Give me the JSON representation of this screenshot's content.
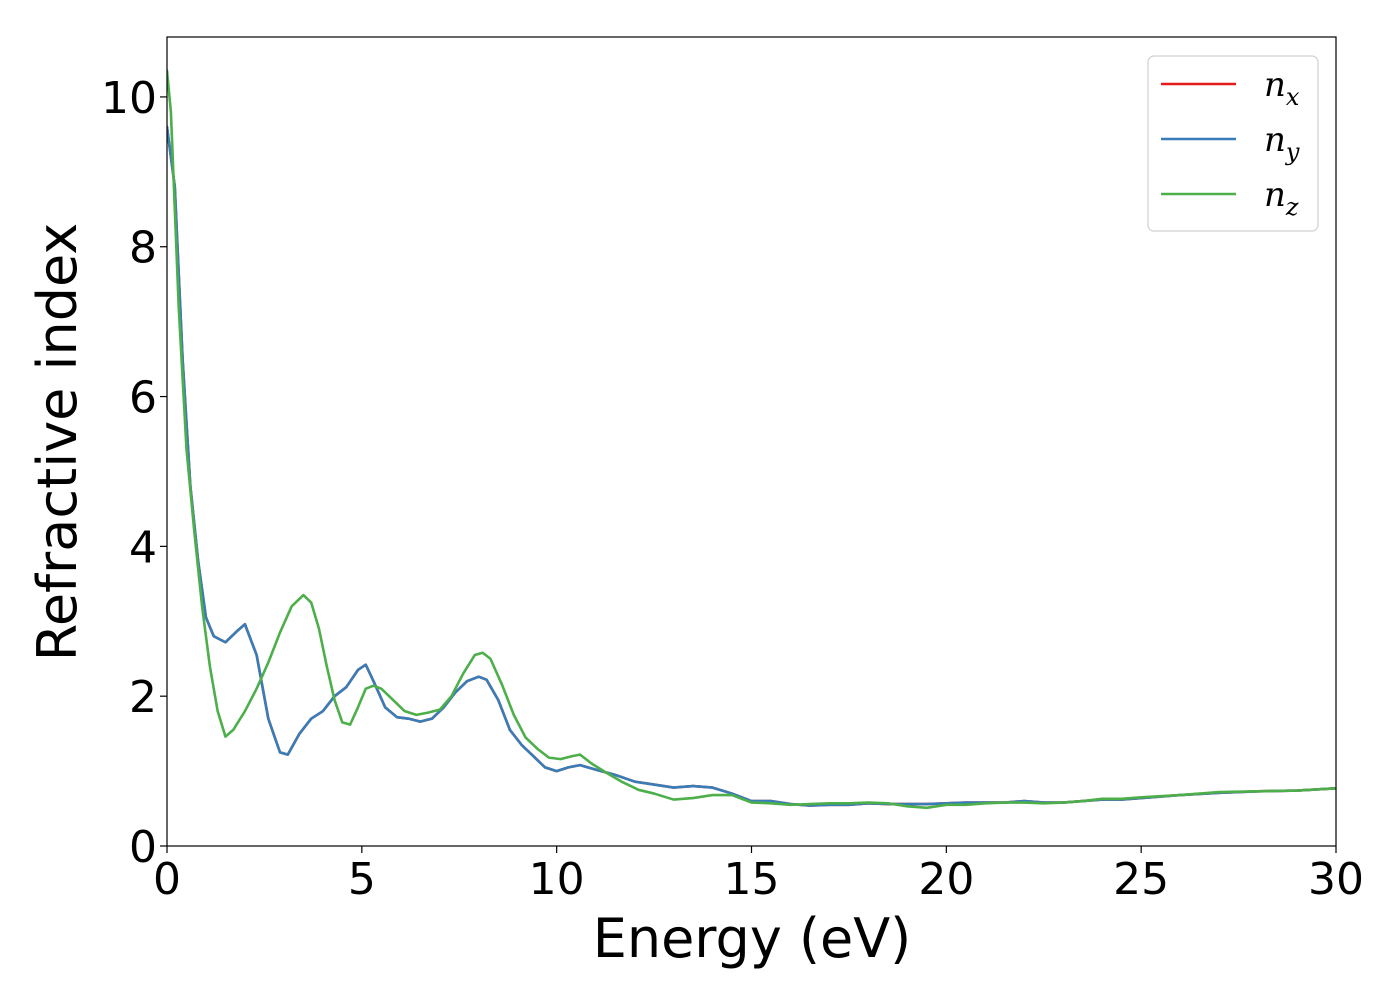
{
  "chart_data": {
    "type": "line",
    "title": "",
    "xlabel": "Energy (eV)",
    "ylabel": "Refractive index",
    "xlim": [
      0,
      30
    ],
    "ylim": [
      0,
      10.8
    ],
    "xticks": [
      0,
      5,
      10,
      15,
      20,
      25,
      30
    ],
    "yticks": [
      0,
      2,
      4,
      6,
      8,
      10
    ],
    "grid": false,
    "legend_position": "top-right",
    "series": [
      {
        "name": "n_x",
        "legend_base": "n",
        "legend_sub": "x",
        "color": "#e41a1c",
        "x": [
          0,
          0.2,
          0.4,
          0.6,
          0.8,
          1.0,
          1.2,
          1.5,
          1.8,
          2.0,
          2.3,
          2.6,
          2.9,
          3.1,
          3.4,
          3.7,
          4.0,
          4.3,
          4.6,
          4.9,
          5.1,
          5.3,
          5.6,
          5.9,
          6.2,
          6.5,
          6.8,
          7.1,
          7.4,
          7.7,
          8.0,
          8.2,
          8.5,
          8.8,
          9.1,
          9.4,
          9.7,
          10.0,
          10.3,
          10.6,
          11.0,
          11.5,
          12.0,
          12.5,
          13.0,
          13.5,
          14.0,
          14.5,
          15.0,
          15.5,
          16.0,
          16.5,
          17.0,
          17.5,
          18.0,
          18.5,
          19.0,
          19.5,
          20.0,
          20.5,
          21.0,
          21.5,
          22.0,
          22.5,
          23.0,
          23.5,
          24.0,
          24.5,
          25.0,
          26.0,
          27.0,
          28.0,
          29.0,
          30.0
        ],
        "values": [
          9.6,
          8.8,
          6.5,
          4.8,
          3.8,
          3.05,
          2.8,
          2.72,
          2.87,
          2.96,
          2.55,
          1.7,
          1.25,
          1.22,
          1.5,
          1.7,
          1.8,
          2.0,
          2.12,
          2.35,
          2.42,
          2.2,
          1.85,
          1.72,
          1.7,
          1.66,
          1.7,
          1.85,
          2.05,
          2.2,
          2.26,
          2.22,
          1.95,
          1.55,
          1.35,
          1.2,
          1.05,
          1.0,
          1.05,
          1.08,
          1.02,
          0.95,
          0.86,
          0.82,
          0.78,
          0.8,
          0.78,
          0.7,
          0.6,
          0.6,
          0.56,
          0.54,
          0.55,
          0.55,
          0.57,
          0.56,
          0.56,
          0.56,
          0.57,
          0.58,
          0.58,
          0.58,
          0.6,
          0.58,
          0.58,
          0.6,
          0.62,
          0.62,
          0.64,
          0.68,
          0.71,
          0.73,
          0.74,
          0.77
        ]
      },
      {
        "name": "n_y",
        "legend_base": "n",
        "legend_sub": "y",
        "color": "#377eb8",
        "x": [
          0,
          0.2,
          0.4,
          0.6,
          0.8,
          1.0,
          1.2,
          1.5,
          1.8,
          2.0,
          2.3,
          2.6,
          2.9,
          3.1,
          3.4,
          3.7,
          4.0,
          4.3,
          4.6,
          4.9,
          5.1,
          5.3,
          5.6,
          5.9,
          6.2,
          6.5,
          6.8,
          7.1,
          7.4,
          7.7,
          8.0,
          8.2,
          8.5,
          8.8,
          9.1,
          9.4,
          9.7,
          10.0,
          10.3,
          10.6,
          11.0,
          11.5,
          12.0,
          12.5,
          13.0,
          13.5,
          14.0,
          14.5,
          15.0,
          15.5,
          16.0,
          16.5,
          17.0,
          17.5,
          18.0,
          18.5,
          19.0,
          19.5,
          20.0,
          20.5,
          21.0,
          21.5,
          22.0,
          22.5,
          23.0,
          23.5,
          24.0,
          24.5,
          25.0,
          26.0,
          27.0,
          28.0,
          29.0,
          30.0
        ],
        "values": [
          9.6,
          8.8,
          6.5,
          4.8,
          3.8,
          3.05,
          2.8,
          2.72,
          2.87,
          2.96,
          2.55,
          1.7,
          1.25,
          1.22,
          1.5,
          1.7,
          1.8,
          2.0,
          2.12,
          2.35,
          2.42,
          2.2,
          1.85,
          1.72,
          1.7,
          1.66,
          1.7,
          1.85,
          2.05,
          2.2,
          2.26,
          2.22,
          1.95,
          1.55,
          1.35,
          1.2,
          1.05,
          1.0,
          1.05,
          1.08,
          1.02,
          0.95,
          0.86,
          0.82,
          0.78,
          0.8,
          0.78,
          0.7,
          0.6,
          0.6,
          0.56,
          0.54,
          0.55,
          0.55,
          0.57,
          0.56,
          0.56,
          0.56,
          0.57,
          0.58,
          0.58,
          0.58,
          0.6,
          0.58,
          0.58,
          0.6,
          0.62,
          0.62,
          0.64,
          0.68,
          0.71,
          0.73,
          0.74,
          0.77
        ]
      },
      {
        "name": "n_z",
        "legend_base": "n",
        "legend_sub": "z",
        "color": "#4daf4a",
        "x": [
          0,
          0.1,
          0.3,
          0.5,
          0.7,
          0.9,
          1.1,
          1.3,
          1.5,
          1.7,
          2.0,
          2.3,
          2.6,
          2.9,
          3.2,
          3.5,
          3.7,
          3.9,
          4.1,
          4.3,
          4.5,
          4.7,
          4.9,
          5.1,
          5.3,
          5.5,
          5.8,
          6.1,
          6.4,
          6.7,
          7.0,
          7.3,
          7.6,
          7.9,
          8.1,
          8.3,
          8.6,
          8.9,
          9.2,
          9.5,
          9.8,
          10.1,
          10.4,
          10.6,
          10.9,
          11.3,
          11.7,
          12.1,
          12.5,
          13.0,
          13.5,
          14.0,
          14.5,
          15.0,
          15.5,
          16.0,
          16.5,
          17.0,
          17.5,
          18.0,
          18.5,
          19.0,
          19.5,
          20.0,
          20.5,
          21.0,
          21.5,
          22.0,
          22.5,
          23.0,
          23.5,
          24.0,
          24.5,
          25.0,
          26.0,
          27.0,
          28.0,
          29.0,
          30.0
        ],
        "values": [
          10.35,
          9.8,
          7.2,
          5.3,
          4.2,
          3.2,
          2.4,
          1.8,
          1.46,
          1.55,
          1.8,
          2.1,
          2.45,
          2.85,
          3.2,
          3.35,
          3.25,
          2.9,
          2.4,
          1.95,
          1.65,
          1.62,
          1.85,
          2.1,
          2.14,
          2.1,
          1.95,
          1.8,
          1.75,
          1.78,
          1.82,
          2.0,
          2.3,
          2.55,
          2.58,
          2.5,
          2.15,
          1.75,
          1.45,
          1.3,
          1.18,
          1.16,
          1.2,
          1.22,
          1.1,
          0.97,
          0.85,
          0.75,
          0.7,
          0.62,
          0.64,
          0.68,
          0.68,
          0.58,
          0.57,
          0.55,
          0.56,
          0.57,
          0.57,
          0.58,
          0.57,
          0.53,
          0.51,
          0.55,
          0.55,
          0.57,
          0.58,
          0.58,
          0.57,
          0.58,
          0.6,
          0.63,
          0.63,
          0.65,
          0.68,
          0.72,
          0.73,
          0.74,
          0.77
        ]
      }
    ]
  }
}
